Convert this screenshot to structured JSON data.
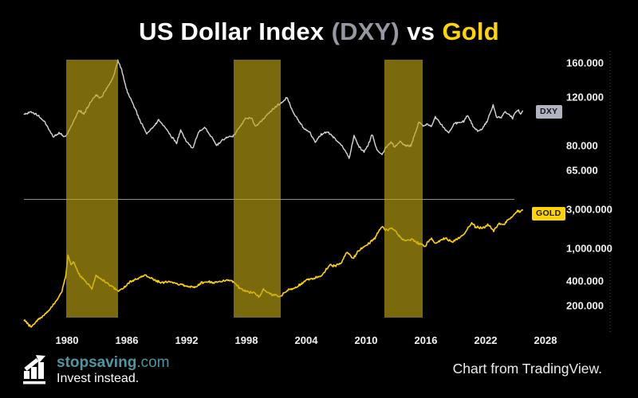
{
  "title": {
    "part1": "US Dollar Index",
    "part2": "(DXY)",
    "part3": "vs",
    "part4": "Gold"
  },
  "footer": {
    "brand_name": "stopsaving",
    "brand_tld": ".com",
    "tagline": "Invest instead.",
    "credit": "Chart from TradingView."
  },
  "colors": {
    "background": "#000000",
    "title_text": "#ffffff",
    "title_dxy": "#9598a1",
    "title_gold": "#ffd402",
    "divider": "#8f8f8f",
    "axis_text": "#f2f2f2",
    "price_axis_dotted": "rgba(255,255,255,0.35)",
    "brand_teal": "#4f96a2"
  },
  "chart_data": {
    "type": "line",
    "x_axis": {
      "range": [
        1975.7,
        2028.5
      ],
      "ticks": [
        {
          "value": 1980,
          "label": "1980"
        },
        {
          "value": 1986,
          "label": "1986"
        },
        {
          "value": 1992,
          "label": "1992"
        },
        {
          "value": 1998,
          "label": "1998"
        },
        {
          "value": 2004,
          "label": "2004"
        },
        {
          "value": 2010,
          "label": "2010"
        },
        {
          "value": 2016,
          "label": "2016"
        },
        {
          "value": 2022,
          "label": "2022"
        },
        {
          "value": 2028,
          "label": "2028"
        }
      ]
    },
    "panes": [
      {
        "name": "DXY",
        "scale": "log",
        "range": [
          60,
          175
        ],
        "axis_labels": [
          {
            "value": 160,
            "label": "160.000"
          },
          {
            "value": 120,
            "label": "120.000"
          },
          {
            "value": 80,
            "label": "80.000"
          },
          {
            "value": 65,
            "label": "65.000"
          }
        ]
      },
      {
        "name": "GOLD",
        "scale": "log",
        "range": [
          100,
          3300
        ],
        "axis_labels": [
          {
            "value": 3000,
            "label": "3,000.000"
          },
          {
            "value": 1000,
            "label": "1,000.000"
          },
          {
            "value": 400,
            "label": "400.000"
          },
          {
            "value": 200,
            "label": "200.000"
          }
        ]
      }
    ],
    "highlight_bands": {
      "color": "rgba(187,163,17,0.65)",
      "ranges": [
        [
          1979.92,
          1985.12
        ],
        [
          1996.72,
          2001.44
        ],
        [
          2011.84,
          2015.68
        ]
      ]
    },
    "series": [
      {
        "name": "US Dollar Index",
        "pane": "DXY",
        "color": "#d6d7db",
        "badge": {
          "label": "DXY",
          "bg": "#b2b5be",
          "fg": "#131722"
        },
        "points": [
          [
            1975.7,
            104
          ],
          [
            1976.4,
            106
          ],
          [
            1977.1,
            103
          ],
          [
            1977.8,
            97
          ],
          [
            1978.6,
            86
          ],
          [
            1979.2,
            89
          ],
          [
            1979.7,
            86
          ],
          [
            1980.0,
            88
          ],
          [
            1980.6,
            97
          ],
          [
            1981.2,
            108
          ],
          [
            1981.7,
            104
          ],
          [
            1982.3,
            114
          ],
          [
            1982.9,
            122
          ],
          [
            1983.4,
            119
          ],
          [
            1984.1,
            131
          ],
          [
            1984.7,
            144
          ],
          [
            1985.1,
            163
          ],
          [
            1985.5,
            150
          ],
          [
            1986.0,
            127
          ],
          [
            1986.6,
            114
          ],
          [
            1987.2,
            101
          ],
          [
            1988.0,
            88
          ],
          [
            1988.6,
            93
          ],
          [
            1989.2,
            99
          ],
          [
            1989.8,
            94
          ],
          [
            1990.4,
            87
          ],
          [
            1991.0,
            82
          ],
          [
            1991.4,
            91
          ],
          [
            1992.0,
            83
          ],
          [
            1992.6,
            78
          ],
          [
            1993.2,
            90
          ],
          [
            1993.8,
            93
          ],
          [
            1994.4,
            87
          ],
          [
            1995.0,
            80
          ],
          [
            1995.6,
            84
          ],
          [
            1996.2,
            86
          ],
          [
            1996.7,
            87
          ],
          [
            1997.3,
            93
          ],
          [
            1997.9,
            100
          ],
          [
            1998.5,
            101
          ],
          [
            1998.9,
            94
          ],
          [
            1999.5,
            98
          ],
          [
            2000.1,
            104
          ],
          [
            2000.7,
            109
          ],
          [
            2001.2,
            113
          ],
          [
            2001.7,
            116
          ],
          [
            2002.1,
            120
          ],
          [
            2002.6,
            107
          ],
          [
            2003.2,
            99
          ],
          [
            2003.8,
            92
          ],
          [
            2004.4,
            89
          ],
          [
            2004.9,
            82
          ],
          [
            2005.5,
            88
          ],
          [
            2006.1,
            90
          ],
          [
            2006.7,
            86
          ],
          [
            2007.3,
            82
          ],
          [
            2007.9,
            77
          ],
          [
            2008.3,
            71.5
          ],
          [
            2008.8,
            87
          ],
          [
            2009.3,
            79
          ],
          [
            2009.8,
            76
          ],
          [
            2010.3,
            82
          ],
          [
            2010.6,
            88
          ],
          [
            2011.1,
            77
          ],
          [
            2011.6,
            74
          ],
          [
            2012.0,
            79
          ],
          [
            2012.5,
            82
          ],
          [
            2012.9,
            79
          ],
          [
            2013.4,
            83
          ],
          [
            2013.9,
            80
          ],
          [
            2014.5,
            80
          ],
          [
            2014.9,
            88
          ],
          [
            2015.3,
            97
          ],
          [
            2015.8,
            94
          ],
          [
            2016.2,
            96
          ],
          [
            2016.6,
            94
          ],
          [
            2016.95,
            102
          ],
          [
            2017.4,
            97
          ],
          [
            2017.9,
            92
          ],
          [
            2018.3,
            89
          ],
          [
            2018.8,
            96
          ],
          [
            2019.3,
            97
          ],
          [
            2019.8,
            98
          ],
          [
            2020.2,
            103
          ],
          [
            2020.8,
            93
          ],
          [
            2021.2,
            90
          ],
          [
            2021.7,
            93
          ],
          [
            2022.2,
            99
          ],
          [
            2022.75,
            112
          ],
          [
            2023.1,
            102
          ],
          [
            2023.5,
            101
          ],
          [
            2023.9,
            106
          ],
          [
            2024.3,
            104
          ],
          [
            2024.7,
            101
          ],
          [
            2025.0,
            106
          ],
          [
            2025.3,
            108
          ],
          [
            2025.5,
            104
          ],
          [
            2025.7,
            107
          ]
        ]
      },
      {
        "name": "Gold",
        "pane": "GOLD",
        "color": "#ffd402",
        "badge": {
          "label": "GOLD",
          "bg": "#ffd402",
          "fg": "#131722"
        },
        "points": [
          [
            1975.7,
            132
          ],
          [
            1976.4,
            110
          ],
          [
            1977.0,
            132
          ],
          [
            1977.7,
            152
          ],
          [
            1978.4,
            190
          ],
          [
            1979.0,
            235
          ],
          [
            1979.5,
            300
          ],
          [
            1979.9,
            480
          ],
          [
            1980.1,
            840
          ],
          [
            1980.4,
            630
          ],
          [
            1980.7,
            670
          ],
          [
            1981.1,
            510
          ],
          [
            1981.6,
            430
          ],
          [
            1982.1,
            370
          ],
          [
            1982.5,
            320
          ],
          [
            1982.9,
            470
          ],
          [
            1983.4,
            420
          ],
          [
            1984.0,
            385
          ],
          [
            1984.6,
            340
          ],
          [
            1985.1,
            305
          ],
          [
            1985.7,
            330
          ],
          [
            1986.3,
            395
          ],
          [
            1987.0,
            430
          ],
          [
            1987.8,
            470
          ],
          [
            1988.4,
            435
          ],
          [
            1989.1,
            395
          ],
          [
            1989.7,
            380
          ],
          [
            1990.2,
            400
          ],
          [
            1990.8,
            375
          ],
          [
            1991.4,
            360
          ],
          [
            1992.1,
            345
          ],
          [
            1992.8,
            335
          ],
          [
            1993.4,
            380
          ],
          [
            1994.0,
            390
          ],
          [
            1994.7,
            385
          ],
          [
            1995.4,
            390
          ],
          [
            1996.0,
            415
          ],
          [
            1996.7,
            395
          ],
          [
            1997.3,
            330
          ],
          [
            1998.0,
            295
          ],
          [
            1998.7,
            292
          ],
          [
            1999.3,
            258
          ],
          [
            1999.7,
            315
          ],
          [
            2000.3,
            280
          ],
          [
            2001.0,
            265
          ],
          [
            2001.4,
            258
          ],
          [
            2002.0,
            305
          ],
          [
            2002.7,
            325
          ],
          [
            2003.3,
            355
          ],
          [
            2004.0,
            410
          ],
          [
            2004.7,
            435
          ],
          [
            2005.4,
            450
          ],
          [
            2006.0,
            555
          ],
          [
            2006.4,
            640
          ],
          [
            2006.9,
            600
          ],
          [
            2007.5,
            670
          ],
          [
            2008.1,
            905
          ],
          [
            2008.7,
            745
          ],
          [
            2009.2,
            930
          ],
          [
            2009.8,
            1050
          ],
          [
            2010.3,
            1150
          ],
          [
            2010.9,
            1350
          ],
          [
            2011.6,
            1880
          ],
          [
            2012.0,
            1680
          ],
          [
            2012.6,
            1740
          ],
          [
            2013.0,
            1620
          ],
          [
            2013.5,
            1330
          ],
          [
            2014.1,
            1250
          ],
          [
            2014.6,
            1290
          ],
          [
            2015.1,
            1180
          ],
          [
            2015.9,
            1065
          ],
          [
            2016.5,
            1330
          ],
          [
            2016.95,
            1150
          ],
          [
            2017.5,
            1260
          ],
          [
            2018.0,
            1330
          ],
          [
            2018.6,
            1200
          ],
          [
            2019.2,
            1300
          ],
          [
            2019.8,
            1490
          ],
          [
            2020.6,
            2040
          ],
          [
            2021.0,
            1830
          ],
          [
            2021.4,
            1780
          ],
          [
            2021.9,
            1810
          ],
          [
            2022.2,
            1980
          ],
          [
            2022.8,
            1640
          ],
          [
            2023.3,
            1985
          ],
          [
            2023.8,
            1935
          ],
          [
            2024.2,
            2200
          ],
          [
            2024.6,
            2400
          ],
          [
            2024.9,
            2650
          ],
          [
            2025.2,
            2880
          ],
          [
            2025.45,
            2810
          ],
          [
            2025.7,
            2940
          ]
        ]
      }
    ]
  }
}
